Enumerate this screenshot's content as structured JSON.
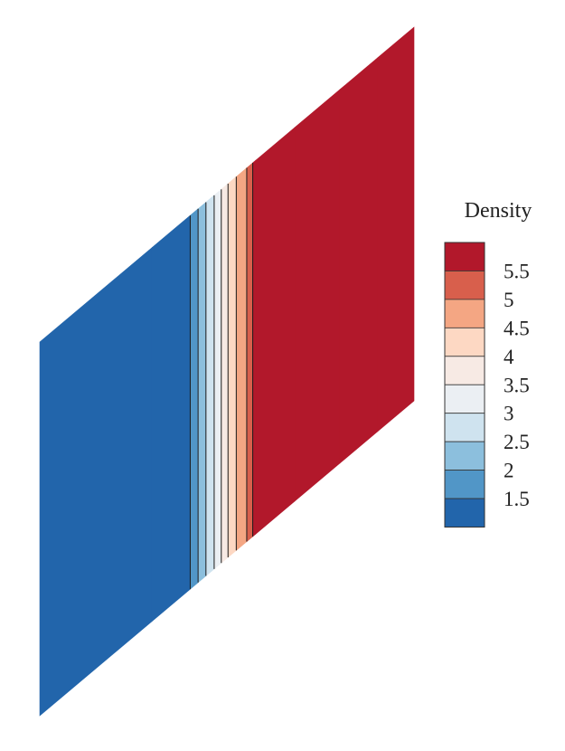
{
  "chart_data": {
    "type": "contour",
    "legend": {
      "title": "Density",
      "levels": [
        1.5,
        2,
        2.5,
        3,
        3.5,
        4,
        4.5,
        5,
        5.5
      ],
      "tick_labels": [
        "5.5",
        "5",
        "4.5",
        "4",
        "3.5",
        "3",
        "2.5",
        "2",
        "1.5"
      ],
      "colors": [
        "#2265ab",
        "#5196c7",
        "#8cbfdd",
        "#cfe3ef",
        "#ebeff3",
        "#f7eae4",
        "#fdd8c3",
        "#f4a683",
        "#d85f4c",
        "#b2182b"
      ]
    },
    "x": [
      0.0,
      0.3,
      0.402,
      0.423,
      0.444,
      0.466,
      0.485,
      0.503,
      0.525,
      0.553,
      0.569,
      0.577,
      0.681,
      0.802,
      0.903,
      1.0
    ],
    "density": [
      1.0,
      1.0,
      1.5,
      2.0,
      2.5,
      3.0,
      3.5,
      4.0,
      4.5,
      5.0,
      5.5,
      6.0,
      6.0,
      6.0,
      6.0,
      6.0
    ]
  }
}
